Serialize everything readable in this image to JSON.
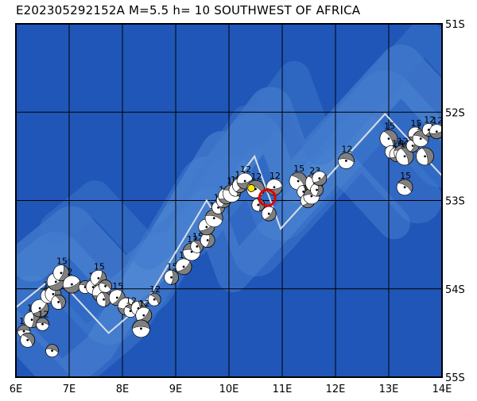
{
  "title": "E202305292152A  M=5.5  h= 10  SOUTHWEST OF AFRICA",
  "colors": {
    "ocean": "#1f56b8",
    "ocean_shallow": "#3e78cc",
    "ridge": "#5d93d9",
    "grid": "#000000",
    "plate_boundary": "#d9dee6",
    "event_outline": "#e00000",
    "epicenter": "#ffe800",
    "beachball_dark": "#808080",
    "beachball_light": "#ffffff"
  },
  "map": {
    "lon_range": [
      6,
      14
    ],
    "lat_range": [
      -55,
      -51
    ],
    "lon_labels": [
      "6E",
      "7E",
      "8E",
      "9E",
      "10E",
      "11E",
      "12E",
      "13E",
      "14E"
    ],
    "lat_labels": [
      "51S",
      "52S",
      "53S",
      "54S",
      "55S"
    ]
  },
  "main_event": {
    "lon": 10.72,
    "lat": -52.97
  },
  "epicenter_marker": {
    "lon": 10.42,
    "lat": -52.86
  },
  "plate_boundary": [
    [
      6.0,
      -54.21
    ],
    [
      6.74,
      -53.85
    ],
    [
      7.74,
      -54.5
    ],
    [
      8.46,
      -54.13
    ],
    [
      9.58,
      -53.0
    ],
    [
      9.7,
      -53.12
    ],
    [
      10.48,
      -52.5
    ],
    [
      10.97,
      -53.32
    ],
    [
      12.93,
      -52.02
    ],
    [
      14.0,
      -52.72
    ]
  ],
  "mechanisms": [
    {
      "lon": 6.15,
      "lat": -54.48,
      "label": "12"
    },
    {
      "lon": 6.22,
      "lat": -54.58,
      "label": ""
    },
    {
      "lon": 6.3,
      "lat": -54.35,
      "label": "14"
    },
    {
      "lon": 6.45,
      "lat": -54.22,
      "label": ""
    },
    {
      "lon": 6.5,
      "lat": -54.4,
      "label": "12"
    },
    {
      "lon": 6.6,
      "lat": -54.08,
      "label": "1"
    },
    {
      "lon": 6.7,
      "lat": -54.06,
      "label": ""
    },
    {
      "lon": 6.75,
      "lat": -53.92,
      "label": ""
    },
    {
      "lon": 6.68,
      "lat": -54.7,
      "label": ""
    },
    {
      "lon": 6.8,
      "lat": -54.15,
      "label": ""
    },
    {
      "lon": 6.85,
      "lat": -53.82,
      "label": "15"
    },
    {
      "lon": 7.05,
      "lat": -53.95,
      "label": "2"
    },
    {
      "lon": 7.3,
      "lat": -53.98,
      "label": ""
    },
    {
      "lon": 7.45,
      "lat": -53.98,
      "label": "15"
    },
    {
      "lon": 7.55,
      "lat": -53.88,
      "label": "15"
    },
    {
      "lon": 7.6,
      "lat": -54.05,
      "label": ""
    },
    {
      "lon": 7.68,
      "lat": -53.97,
      "label": ""
    },
    {
      "lon": 7.65,
      "lat": -54.12,
      "label": ""
    },
    {
      "lon": 7.9,
      "lat": -54.1,
      "label": "15"
    },
    {
      "lon": 8.08,
      "lat": -54.2,
      "label": ""
    },
    {
      "lon": 8.15,
      "lat": -54.25,
      "label": "12"
    },
    {
      "lon": 8.3,
      "lat": -54.22,
      "label": ""
    },
    {
      "lon": 8.4,
      "lat": -54.3,
      "label": "12"
    },
    {
      "lon": 8.35,
      "lat": -54.45,
      "label": ""
    },
    {
      "lon": 8.6,
      "lat": -54.12,
      "label": "12"
    },
    {
      "lon": 8.92,
      "lat": -53.87,
      "label": "15"
    },
    {
      "lon": 9.15,
      "lat": -53.75,
      "label": "12"
    },
    {
      "lon": 9.3,
      "lat": -53.58,
      "label": "12"
    },
    {
      "lon": 9.4,
      "lat": -53.52,
      "label": "15"
    },
    {
      "lon": 9.6,
      "lat": -53.45,
      "label": "15"
    },
    {
      "lon": 9.58,
      "lat": -53.3,
      "label": ""
    },
    {
      "lon": 9.72,
      "lat": -53.2,
      "label": "15"
    },
    {
      "lon": 9.8,
      "lat": -53.08,
      "label": "17"
    },
    {
      "lon": 9.9,
      "lat": -53.0,
      "label": "19"
    },
    {
      "lon": 9.95,
      "lat": -52.95,
      "label": ""
    },
    {
      "lon": 10.05,
      "lat": -52.92,
      "label": "10"
    },
    {
      "lon": 10.12,
      "lat": -52.88,
      "label": "15"
    },
    {
      "lon": 10.2,
      "lat": -52.83,
      "label": "12"
    },
    {
      "lon": 10.3,
      "lat": -52.78,
      "label": "12"
    },
    {
      "lon": 10.5,
      "lat": -52.87,
      "label": "12"
    },
    {
      "lon": 10.55,
      "lat": -53.05,
      "label": ""
    },
    {
      "lon": 10.75,
      "lat": -53.15,
      "label": ""
    },
    {
      "lon": 10.85,
      "lat": -52.85,
      "label": "12"
    },
    {
      "lon": 11.3,
      "lat": -52.78,
      "label": "15"
    },
    {
      "lon": 11.4,
      "lat": -52.9,
      "label": ""
    },
    {
      "lon": 11.48,
      "lat": -53.0,
      "label": "14"
    },
    {
      "lon": 11.55,
      "lat": -52.95,
      "label": "15"
    },
    {
      "lon": 11.6,
      "lat": -52.8,
      "label": "23"
    },
    {
      "lon": 11.65,
      "lat": -52.88,
      "label": "14"
    },
    {
      "lon": 11.7,
      "lat": -52.75,
      "label": ""
    },
    {
      "lon": 12.2,
      "lat": -52.55,
      "label": "12"
    },
    {
      "lon": 13.0,
      "lat": -52.3,
      "label": "15"
    },
    {
      "lon": 13.05,
      "lat": -52.45,
      "label": ""
    },
    {
      "lon": 13.15,
      "lat": -52.48,
      "label": "16"
    },
    {
      "lon": 13.25,
      "lat": -52.46,
      "label": "12"
    },
    {
      "lon": 13.3,
      "lat": -52.5,
      "label": "13"
    },
    {
      "lon": 13.45,
      "lat": -52.38,
      "label": "1"
    },
    {
      "lon": 13.5,
      "lat": -52.25,
      "label": "15"
    },
    {
      "lon": 13.6,
      "lat": -52.3,
      "label": "1"
    },
    {
      "lon": 13.68,
      "lat": -52.5,
      "label": ""
    },
    {
      "lon": 13.75,
      "lat": -52.2,
      "label": "12"
    },
    {
      "lon": 13.9,
      "lat": -52.22,
      "label": "12"
    },
    {
      "lon": 13.3,
      "lat": -52.85,
      "label": "15"
    }
  ]
}
